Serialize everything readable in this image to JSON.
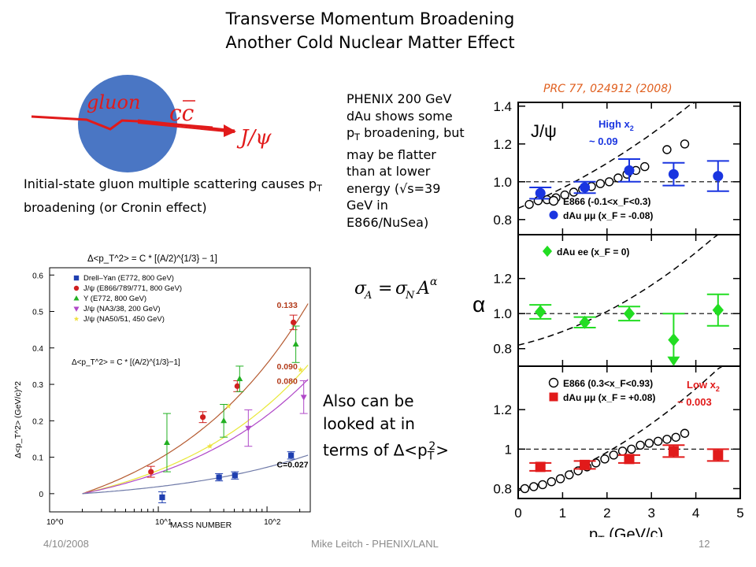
{
  "title_line1": "Transverse Momentum Broadening",
  "title_line2": "Another Cold Nuclear Matter Effect",
  "diagram": {
    "gluon_label": "gluon",
    "ccbar_label": "cc",
    "jpsi_label": "J/ψ"
  },
  "initial_state_text": {
    "before": "Initial-state gluon multiple scattering causes p",
    "sub": "T",
    "after": " broadening (or Cronin effect)"
  },
  "phenix_text": {
    "l1": "PHENIX 200 GeV",
    "l2": "dAu shows some",
    "l3_a": "p",
    "l3_sub": "T",
    "l3_b": " broadening, but",
    "l4": "may be flatter",
    "l5": "than at lower",
    "l6": "energy (√s=39",
    "l7": "GeV in",
    "l8": "E866/NuSea)"
  },
  "formula": "σ_A = σ_N A^α",
  "also_text": {
    "l1": "Also can be",
    "l2": "looked at in",
    "l3_a": "terms of ∆<p",
    "l3_sub": "T",
    "l3_sup": "2",
    "l3_b": ">"
  },
  "reference": "PRC  77, 024912 (2008)",
  "footer": {
    "date": "4/10/2008",
    "author": "Mike Leitch - PHENIX/LANL",
    "page": "12"
  },
  "colors": {
    "red": "#e11a1a",
    "blue": "#1a35e0",
    "green": "#22dd22",
    "orange_ref": "#e06020",
    "gluon_blob": "#4a76c4"
  },
  "chart_data": [
    {
      "type": "scatter",
      "panel": "left",
      "title": "Δ<p_T^2> = C * [(A/2)^{1/3} − 1]",
      "formula_label": "Δ<p_T^2> = C * [(A/2)^{1/3}−1]",
      "xlabel": "MASS NUMBER",
      "ylabel": "Δ<p_T^2> (GeV/c)^2",
      "xscale": "log",
      "xlim": [
        1,
        250
      ],
      "ylim": [
        -0.05,
        0.62
      ],
      "x_tick_labels": [
        "10^0",
        "10^1",
        "10^2"
      ],
      "y_ticks": [
        0,
        0.1,
        0.2,
        0.3,
        0.4,
        0.5,
        0.6
      ],
      "y_tick_labels": [
        "0",
        "0.1",
        "0.2",
        "0.3",
        "0.4",
        "0.5",
        "0.6"
      ],
      "legend": [
        "Drell–Yan (E772, 800 GeV)",
        "J/ψ (E866/789/771, 800 GeV)",
        "Υ (E772, 800 GeV)",
        "J/ψ (NA3/38, 200 GeV)",
        "J/ψ (NA50/51, 450 GeV)"
      ],
      "curves": [
        {
          "name": "0.133",
          "C": 0.133,
          "color": "#b55a30"
        },
        {
          "name": "0.090",
          "C": 0.09,
          "color": "#e8e838"
        },
        {
          "name": "0.080",
          "C": 0.08,
          "color": "#b048c8"
        },
        {
          "name": "C=0.027",
          "C": 0.027,
          "color": "#6f7aa8"
        }
      ],
      "series": [
        {
          "name": "Drell–Yan (E772, 800 GeV)",
          "color": "#1f3fb0",
          "marker": "square",
          "points": [
            {
              "x": 12,
              "y": -0.01,
              "err": 0.015
            },
            {
              "x": 40,
              "y": 0.045,
              "err": 0.01
            },
            {
              "x": 56,
              "y": 0.05,
              "err": 0.01
            },
            {
              "x": 184,
              "y": 0.105,
              "err": 0.01
            }
          ]
        },
        {
          "name": "J/ψ (E866/789/771, 800 GeV)",
          "color": "#d02020",
          "marker": "circle",
          "points": [
            {
              "x": 9,
              "y": 0.06,
              "err": 0.015
            },
            {
              "x": 27,
              "y": 0.21,
              "err": 0.015
            },
            {
              "x": 56,
              "y": 0.295,
              "err": 0.015
            },
            {
              "x": 184,
              "y": 0.47,
              "err": 0.02
            }
          ]
        },
        {
          "name": "Υ (E772, 800 GeV)",
          "color": "#22b022",
          "marker": "triangle-up",
          "points": [
            {
              "x": 12,
              "y": 0.14,
              "err": 0.08
            },
            {
              "x": 40,
              "y": 0.2,
              "err": 0.045
            },
            {
              "x": 56,
              "y": 0.315,
              "err": 0.035
            },
            {
              "x": 184,
              "y": 0.41,
              "err": 0.05
            }
          ]
        },
        {
          "name": "J/ψ (NA3/38, 200 GeV)",
          "color": "#b048c8",
          "marker": "triangle-down",
          "points": [
            {
              "x": 64,
              "y": 0.18,
              "err": 0.05
            },
            {
              "x": 207,
              "y": 0.265,
              "err": 0.045
            }
          ]
        },
        {
          "name": "J/ψ (NA50/51, 450 GeV)",
          "color": "#f0e040",
          "marker": "star",
          "points": [
            {
              "x": 27,
              "y": 0.13,
              "err": 0.0
            },
            {
              "x": 40,
              "y": 0.24,
              "err": 0.0
            },
            {
              "x": 184,
              "y": 0.34,
              "err": 0.0
            }
          ]
        }
      ]
    },
    {
      "type": "scatter",
      "panel": "right-top",
      "ylabel": "α",
      "xlim": [
        0,
        5
      ],
      "ylim": [
        0.72,
        1.42
      ],
      "y_ticks": [
        0.8,
        1.0,
        1.2,
        1.4
      ],
      "y_tick_labels": [
        "0.8",
        "1.0",
        "1.2",
        "1.4"
      ],
      "panel_label": "J/ψ",
      "annotation": {
        "text": "High x",
        "sub": "2",
        "line2": "~ 0.09",
        "color": "#1a35e0"
      },
      "series": [
        {
          "name": "E866 (-0.1<x_F<0.3)",
          "marker": "open-circle",
          "color": "#000000",
          "points": [
            {
              "x": 0.25,
              "y": 0.88
            },
            {
              "x": 0.45,
              "y": 0.9
            },
            {
              "x": 0.65,
              "y": 0.905
            },
            {
              "x": 0.85,
              "y": 0.915
            },
            {
              "x": 1.05,
              "y": 0.93
            },
            {
              "x": 1.25,
              "y": 0.945
            },
            {
              "x": 1.45,
              "y": 0.96
            },
            {
              "x": 1.65,
              "y": 0.975
            },
            {
              "x": 1.85,
              "y": 0.99
            },
            {
              "x": 2.05,
              "y": 1.0
            },
            {
              "x": 2.25,
              "y": 1.02
            },
            {
              "x": 2.45,
              "y": 1.04
            },
            {
              "x": 2.65,
              "y": 1.06
            },
            {
              "x": 2.85,
              "y": 1.08
            },
            {
              "x": 3.35,
              "y": 1.17
            },
            {
              "x": 3.75,
              "y": 1.2
            }
          ]
        },
        {
          "name": "dAu μμ (x_F = -0.08)",
          "marker": "filled-circle",
          "color": "#1a35e0",
          "points": [
            {
              "x": 0.5,
              "y": 0.94,
              "err": 0.03
            },
            {
              "x": 1.5,
              "y": 0.97,
              "err": 0.03
            },
            {
              "x": 2.5,
              "y": 1.06,
              "err": 0.06
            },
            {
              "x": 3.5,
              "y": 1.04,
              "err": 0.06
            },
            {
              "x": 4.5,
              "y": 1.03,
              "err": 0.08
            }
          ]
        }
      ]
    },
    {
      "type": "scatter",
      "panel": "right-middle",
      "ylabel": "α",
      "xlim": [
        0,
        5
      ],
      "ylim": [
        0.7,
        1.45
      ],
      "y_ticks": [
        0.8,
        1.0,
        1.2
      ],
      "y_tick_labels": [
        "0.8",
        "1.0",
        "1.2"
      ],
      "series": [
        {
          "name": "dAu ee (x_F = 0)",
          "marker": "diamond",
          "color": "#22dd22",
          "points": [
            {
              "x": 0.5,
              "y": 1.01,
              "err": 0.04
            },
            {
              "x": 1.5,
              "y": 0.95,
              "err": 0.03
            },
            {
              "x": 2.5,
              "y": 1.0,
              "err": 0.04
            },
            {
              "x": 3.5,
              "y": 0.85,
              "err": 0.15
            },
            {
              "x": 4.5,
              "y": 1.02,
              "err": 0.09
            }
          ]
        }
      ]
    },
    {
      "type": "scatter",
      "panel": "right-bottom",
      "xlabel": "p_T (GeV/c)",
      "xlim": [
        0,
        5
      ],
      "ylim": [
        0.75,
        1.42
      ],
      "x_ticks": [
        0,
        1,
        2,
        3,
        4,
        5
      ],
      "x_tick_labels": [
        "0",
        "1",
        "2",
        "3",
        "4",
        "5"
      ],
      "y_ticks": [
        0.8,
        1.0,
        1.2
      ],
      "y_tick_labels": [
        "0.8",
        "1",
        "1.2"
      ],
      "annotation": {
        "text": "Low x",
        "sub": "2",
        "line2": "~ 0.003",
        "color": "#e11a1a"
      },
      "series": [
        {
          "name": "E866 (0.3<x_F<0.93)",
          "marker": "open-circle",
          "color": "#000000",
          "points": [
            {
              "x": 0.15,
              "y": 0.8
            },
            {
              "x": 0.35,
              "y": 0.81
            },
            {
              "x": 0.55,
              "y": 0.82
            },
            {
              "x": 0.75,
              "y": 0.835
            },
            {
              "x": 0.95,
              "y": 0.85
            },
            {
              "x": 1.15,
              "y": 0.87
            },
            {
              "x": 1.35,
              "y": 0.89
            },
            {
              "x": 1.55,
              "y": 0.91
            },
            {
              "x": 1.75,
              "y": 0.93
            },
            {
              "x": 1.95,
              "y": 0.95
            },
            {
              "x": 2.15,
              "y": 0.97
            },
            {
              "x": 2.35,
              "y": 0.99
            },
            {
              "x": 2.55,
              "y": 1.0
            },
            {
              "x": 2.75,
              "y": 1.02
            },
            {
              "x": 2.95,
              "y": 1.03
            },
            {
              "x": 3.15,
              "y": 1.04
            },
            {
              "x": 3.35,
              "y": 1.05
            },
            {
              "x": 3.55,
              "y": 1.06
            },
            {
              "x": 3.75,
              "y": 1.08
            }
          ]
        },
        {
          "name": "dAu μμ (x_F = +0.08)",
          "marker": "filled-square",
          "color": "#e11a1a",
          "points": [
            {
              "x": 0.5,
              "y": 0.91,
              "err": 0.02
            },
            {
              "x": 1.5,
              "y": 0.92,
              "err": 0.02
            },
            {
              "x": 2.5,
              "y": 0.95,
              "err": 0.02
            },
            {
              "x": 3.5,
              "y": 0.99,
              "err": 0.03
            },
            {
              "x": 4.5,
              "y": 0.97,
              "err": 0.03
            }
          ]
        }
      ]
    }
  ]
}
